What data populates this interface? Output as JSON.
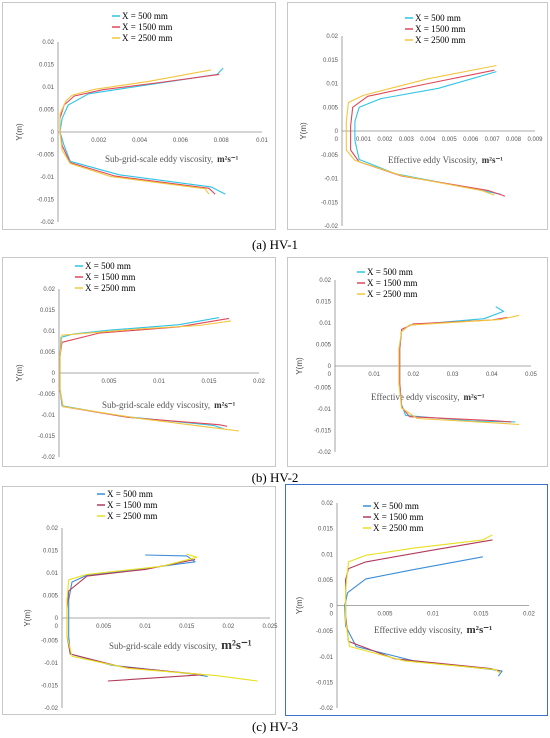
{
  "captions": [
    "(a) HV-1",
    "(b) HV-2",
    "(c) HV-3"
  ],
  "legend_labels": [
    "X = 500   mm",
    "X = 1500 mm",
    "X = 2500 mm"
  ],
  "colors": {
    "s1": "#2ec4e6",
    "s2": "#e0475a",
    "s3": "#f2c53d",
    "s1c": "#3c8ed8",
    "s2c": "#b03a5a",
    "s3c": "#e8e020",
    "border": "#9aa0a6",
    "blueborder": "#3a74c8",
    "axis": "#8c8c8c"
  },
  "chart_data": [
    {
      "type": "line",
      "ylabel": "Y(m)",
      "xlabel": "Sub-grid-scale eddy viscosity,",
      "xunit": "m²s⁻¹",
      "xlim": [
        0,
        0.01
      ],
      "ylim": [
        -0.02,
        0.02
      ],
      "xticks": [
        "0",
        "0.002",
        "0.004",
        "0.006",
        "0.008",
        "0.01"
      ],
      "yticks": [
        "0.02",
        "0.015",
        "0.01",
        "0.005",
        "0",
        "-0.005",
        "-0.01",
        "-0.015",
        "-0.02"
      ],
      "series": [
        {
          "name": "X = 500   mm",
          "points": [
            [
              0.0081,
              0.0142
            ],
            [
              0.0078,
              0.0128
            ],
            [
              0.004,
              0.0102
            ],
            [
              0.0015,
              0.0085
            ],
            [
              0.0005,
              0.006
            ],
            [
              0.0002,
              0.003
            ],
            [
              0.0001,
              0
            ],
            [
              0.0003,
              -0.003
            ],
            [
              0.0006,
              -0.0065
            ],
            [
              0.003,
              -0.0095
            ],
            [
              0.0075,
              -0.0122
            ],
            [
              0.0082,
              -0.0138
            ]
          ]
        },
        {
          "name": "X = 1500 mm",
          "points": [
            [
              0.0079,
              0.0128
            ],
            [
              0.005,
              0.011
            ],
            [
              0.0022,
              0.0094
            ],
            [
              0.0008,
              0.008
            ],
            [
              0.0003,
              0.006
            ],
            [
              0.0001,
              0.003
            ],
            [
              0.0001,
              0
            ],
            [
              0.0002,
              -0.003
            ],
            [
              0.0006,
              -0.0068
            ],
            [
              0.0028,
              -0.0098
            ],
            [
              0.0074,
              -0.0125
            ],
            [
              0.0077,
              -0.0138
            ]
          ]
        },
        {
          "name": "X = 2500 mm",
          "points": [
            [
              0.0075,
              0.0138
            ],
            [
              0.0045,
              0.0113
            ],
            [
              0.0018,
              0.0095
            ],
            [
              0.0007,
              0.0082
            ],
            [
              0.0004,
              0.007
            ],
            [
              0.0001,
              0.004
            ],
            [
              0.0001,
              0
            ],
            [
              0.0002,
              -0.004
            ],
            [
              0.0006,
              -0.007
            ],
            [
              0.0026,
              -0.0099
            ],
            [
              0.0072,
              -0.0126
            ],
            [
              0.0074,
              -0.0138
            ]
          ]
        }
      ]
    },
    {
      "type": "line",
      "ylabel": "Y(m)",
      "xlabel": "Effective  eddy  Viscosity,",
      "xunit": "m²s⁻¹",
      "xlim": [
        0,
        0.009
      ],
      "ylim": [
        -0.02,
        0.02
      ],
      "xticks": [
        "0",
        "0.001",
        "0.002",
        "0.003",
        "0.004",
        "0.005",
        "0.006",
        "0.007",
        "0.008",
        "0.009"
      ],
      "yticks": [
        "0.02",
        "0.015",
        "0.01",
        "0.005",
        "0",
        "-0.005",
        "-0.01",
        "-0.015",
        "-0.02"
      ],
      "series": [
        {
          "name": "X = 500   mm",
          "points": [
            [
              0.0072,
              0.0125
            ],
            [
              0.0045,
              0.009
            ],
            [
              0.0018,
              0.0068
            ],
            [
              0.0008,
              0.005
            ],
            [
              0.0006,
              0.002
            ],
            [
              0.0006,
              -0.002
            ],
            [
              0.0008,
              -0.006
            ],
            [
              0.0025,
              -0.009
            ],
            [
              0.0065,
              -0.0125
            ],
            [
              0.0074,
              -0.0133
            ]
          ]
        },
        {
          "name": "X = 1500 mm",
          "points": [
            [
              0.0071,
              0.0128
            ],
            [
              0.0038,
              0.0098
            ],
            [
              0.0012,
              0.0073
            ],
            [
              0.0005,
              0.005
            ],
            [
              0.0004,
              0.001
            ],
            [
              0.0004,
              -0.004
            ],
            [
              0.0008,
              -0.0065
            ],
            [
              0.0028,
              -0.0095
            ],
            [
              0.0068,
              -0.0125
            ],
            [
              0.0076,
              -0.0137
            ]
          ]
        },
        {
          "name": "X = 2500 mm",
          "points": [
            [
              0.0072,
              0.0138
            ],
            [
              0.004,
              0.011
            ],
            [
              0.001,
              0.0075
            ],
            [
              0.0003,
              0.006
            ],
            [
              0.0002,
              0.002
            ],
            [
              0.0002,
              -0.004
            ],
            [
              0.0006,
              -0.0062
            ],
            [
              0.0028,
              -0.0094
            ],
            [
              0.0065,
              -0.0125
            ],
            [
              0.0071,
              -0.0135
            ]
          ]
        }
      ]
    },
    {
      "type": "line",
      "ylabel": "Y(m)",
      "xlabel": "Sub-grid-scale  eddy viscosity,",
      "xunit": "m²s⁻¹",
      "xlim": [
        0,
        0.02
      ],
      "ylim": [
        -0.02,
        0.02
      ],
      "xticks": [
        "0",
        "0.005",
        "0.01",
        "0.015",
        "0.02"
      ],
      "yticks": [
        "0.02",
        "0.015",
        "0.01",
        "0.005",
        "0",
        "-0.005",
        "-0.01",
        "-0.015",
        "-0.02"
      ],
      "series": [
        {
          "name": "X = 500   mm",
          "points": [
            [
              0.016,
              0.0132
            ],
            [
              0.012,
              0.0115
            ],
            [
              0.005,
              0.0102
            ],
            [
              0.0015,
              0.0093
            ],
            [
              0.0002,
              0.0085
            ],
            [
              0.0001,
              0.004
            ],
            [
              0.0001,
              -0.004
            ],
            [
              0.0003,
              -0.0078
            ],
            [
              0.006,
              -0.0102
            ],
            [
              0.0155,
              -0.0125
            ],
            [
              0.0165,
              -0.0133
            ]
          ]
        },
        {
          "name": "X = 1500 mm",
          "points": [
            [
              0.017,
              0.013
            ],
            [
              0.012,
              0.011
            ],
            [
              0.004,
              0.0095
            ],
            [
              0.0003,
              0.0073
            ],
            [
              0.0001,
              0.004
            ],
            [
              0.0001,
              -0.004
            ],
            [
              0.0004,
              -0.008
            ],
            [
              0.007,
              -0.0106
            ],
            [
              0.016,
              -0.0123
            ],
            [
              0.0168,
              -0.0127
            ]
          ]
        },
        {
          "name": "X = 2500 mm",
          "points": [
            [
              0.0172,
              0.0124
            ],
            [
              0.014,
              0.0113
            ],
            [
              0.008,
              0.0105
            ],
            [
              0.0003,
              0.009
            ],
            [
              0.0001,
              0.004
            ],
            [
              0.0001,
              -0.004
            ],
            [
              0.0004,
              -0.008
            ],
            [
              0.008,
              -0.0108
            ],
            [
              0.017,
              -0.0135
            ],
            [
              0.018,
              -0.0138
            ]
          ]
        }
      ]
    },
    {
      "type": "line",
      "ylabel": "Y(m)",
      "xlabel": "Effective eddy viscosity,",
      "xunit": "m²s⁻¹",
      "xlim": [
        0,
        0.05
      ],
      "ylim": [
        -0.02,
        0.02
      ],
      "xticks": [
        "0",
        "0.01",
        "0.02",
        "0.03",
        "0.04",
        "0.05"
      ],
      "yticks": [
        "0.02",
        "0.015",
        "0.01",
        "0.005",
        "0",
        "-0.005",
        "-0.01",
        "-0.015",
        "-0.02"
      ],
      "series": [
        {
          "name": "X = 500   mm",
          "points": [
            [
              0.041,
              0.0138
            ],
            [
              0.043,
              0.0127
            ],
            [
              0.038,
              0.011
            ],
            [
              0.019,
              0.0095
            ],
            [
              0.017,
              0.008
            ],
            [
              0.0165,
              0.004
            ],
            [
              0.0165,
              -0.004
            ],
            [
              0.017,
              -0.009
            ],
            [
              0.018,
              -0.0115
            ],
            [
              0.035,
              -0.0128
            ],
            [
              0.046,
              -0.013
            ]
          ]
        },
        {
          "name": "X = 1500 mm",
          "points": [
            [
              0.044,
              0.0113
            ],
            [
              0.04,
              0.0107
            ],
            [
              0.02,
              0.0098
            ],
            [
              0.017,
              0.0085
            ],
            [
              0.0165,
              0.004
            ],
            [
              0.0165,
              -0.004
            ],
            [
              0.017,
              -0.0095
            ],
            [
              0.019,
              -0.0118
            ],
            [
              0.04,
              -0.0127
            ],
            [
              0.045,
              -0.013
            ]
          ]
        },
        {
          "name": "X = 2500 mm",
          "points": [
            [
              0.047,
              0.0118
            ],
            [
              0.042,
              0.0108
            ],
            [
              0.019,
              0.0095
            ],
            [
              0.017,
              0.008
            ],
            [
              0.0163,
              0.004
            ],
            [
              0.0163,
              -0.004
            ],
            [
              0.017,
              -0.0098
            ],
            [
              0.021,
              -0.0122
            ],
            [
              0.042,
              -0.0133
            ],
            [
              0.047,
              -0.0136
            ]
          ]
        }
      ]
    },
    {
      "type": "line",
      "ylabel": "Y(m)",
      "xlabel": "Sub-grid-scale  eddy viscosity,",
      "xunit": "m²s⁻¹",
      "xlim": [
        0,
        0.025
      ],
      "ylim": [
        -0.02,
        0.02
      ],
      "xticks": [
        "0",
        "0.005",
        "0.01",
        "0.015",
        "0.02",
        "0.025"
      ],
      "yticks": [
        "0.02",
        "0.015",
        "0.01",
        "0.005",
        "0",
        "-0.005",
        "-0.01",
        "-0.015",
        "-0.02"
      ],
      "series": [
        {
          "name": "X = 500   mm",
          "points": [
            [
              0.01,
              0.014
            ],
            [
              0.015,
              0.0138
            ],
            [
              0.016,
              0.0125
            ],
            [
              0.01,
              0.011
            ],
            [
              0.003,
              0.0095
            ],
            [
              0.0012,
              0.008
            ],
            [
              0.0008,
              0.004
            ],
            [
              0.0008,
              -0.004
            ],
            [
              0.001,
              -0.008
            ],
            [
              0.006,
              -0.0105
            ],
            [
              0.016,
              -0.0125
            ],
            [
              0.0175,
              -0.013
            ]
          ]
        },
        {
          "name": "X = 1500 mm",
          "points": [
            [
              0.016,
              0.013
            ],
            [
              0.01,
              0.0108
            ],
            [
              0.003,
              0.0093
            ],
            [
              0.0008,
              0.006
            ],
            [
              0.0006,
              0.002
            ],
            [
              0.0006,
              -0.004
            ],
            [
              0.001,
              -0.008
            ],
            [
              0.007,
              -0.0108
            ],
            [
              0.017,
              -0.0126
            ],
            [
              0.0055,
              -0.014
            ]
          ]
        },
        {
          "name": "X = 2500 mm",
          "points": [
            [
              0.015,
              0.0142
            ],
            [
              0.0162,
              0.0135
            ],
            [
              0.012,
              0.0115
            ],
            [
              0.003,
              0.0097
            ],
            [
              0.0008,
              0.0085
            ],
            [
              0.0006,
              0.004
            ],
            [
              0.0006,
              -0.004
            ],
            [
              0.0012,
              -0.0085
            ],
            [
              0.008,
              -0.0112
            ],
            [
              0.0185,
              -0.0128
            ],
            [
              0.0235,
              -0.014
            ]
          ]
        }
      ]
    },
    {
      "type": "line",
      "ylabel": "Y(m)",
      "xlabel": "Effective  eddy viscosity,",
      "xunit": "m²s⁻¹",
      "xlim": [
        0,
        0.02
      ],
      "ylim": [
        -0.02,
        0.02
      ],
      "xticks": [
        "0",
        "0.005",
        "0.01",
        "0.015",
        "0.02"
      ],
      "yticks": [
        "0.02",
        "0.015",
        "0.01",
        "0.005",
        "0",
        "-0.005",
        "-0.01",
        "-0.015",
        "-0.02"
      ],
      "series": [
        {
          "name": "X = 500   mm",
          "points": [
            [
              0.0152,
              0.0095
            ],
            [
              0.008,
              0.007
            ],
            [
              0.003,
              0.0052
            ],
            [
              0.0011,
              0.0025
            ],
            [
              0.0008,
              0
            ],
            [
              0.0009,
              -0.004
            ],
            [
              0.002,
              -0.008
            ],
            [
              0.008,
              -0.0108
            ],
            [
              0.0162,
              -0.0125
            ],
            [
              0.0172,
              -0.0128
            ],
            [
              0.0168,
              -0.0138
            ]
          ]
        },
        {
          "name": "X = 1500 mm",
          "points": [
            [
              0.0162,
              0.0128
            ],
            [
              0.01,
              0.0108
            ],
            [
              0.003,
              0.0085
            ],
            [
              0.0012,
              0.0072
            ],
            [
              0.0009,
              0.005
            ],
            [
              0.0009,
              -0.002
            ],
            [
              0.0012,
              -0.007
            ],
            [
              0.006,
              -0.0104
            ],
            [
              0.016,
              -0.0123
            ],
            [
              0.017,
              -0.0128
            ]
          ]
        },
        {
          "name": "X = 2500 mm",
          "points": [
            [
              0.0162,
              0.0138
            ],
            [
              0.0152,
              0.0128
            ],
            [
              0.008,
              0.0112
            ],
            [
              0.003,
              0.0098
            ],
            [
              0.0012,
              0.0085
            ],
            [
              0.0009,
              0.003
            ],
            [
              0.0009,
              -0.003
            ],
            [
              0.0013,
              -0.008
            ],
            [
              0.007,
              -0.0108
            ],
            [
              0.0165,
              -0.0125
            ],
            [
              0.017,
              -0.0132
            ]
          ]
        }
      ]
    }
  ]
}
